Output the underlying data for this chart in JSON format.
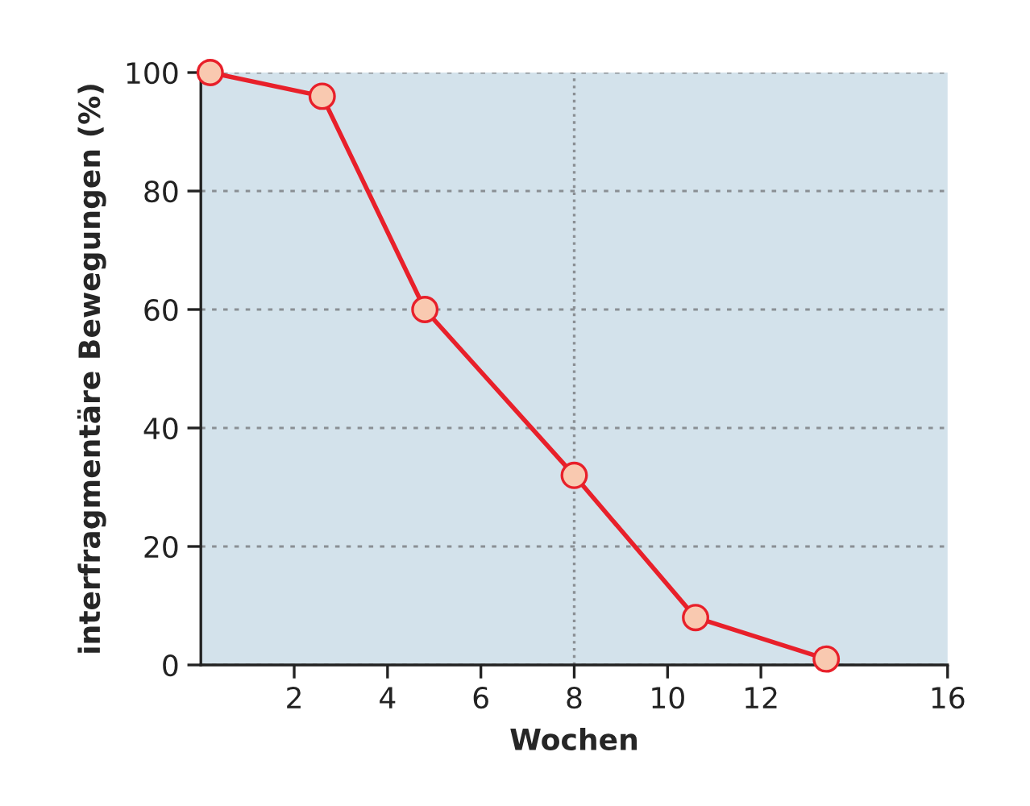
{
  "chart_data": {
    "type": "line",
    "xlabel": "Wochen",
    "ylabel": "interfragmentäre Bewegungen (%)",
    "x": [
      0.2,
      2.6,
      4.8,
      8,
      10.6,
      13.4
    ],
    "series": [
      {
        "color": "#e8202a",
        "values": [
          100,
          96,
          60,
          32,
          8,
          1
        ]
      }
    ],
    "marker": "circle",
    "line_style": "solid",
    "xlim": [
      0,
      16
    ],
    "xticks": [
      2,
      4,
      6,
      8,
      10,
      12,
      16
    ],
    "ylim": [
      0,
      100
    ],
    "yticks": [
      0,
      20,
      40,
      60,
      80,
      100
    ],
    "grid": "y",
    "ref_lines": [
      {
        "axis": "x",
        "value": 8,
        "label": null,
        "line_style": "dotted",
        "color": "#8a8f94"
      }
    ]
  }
}
